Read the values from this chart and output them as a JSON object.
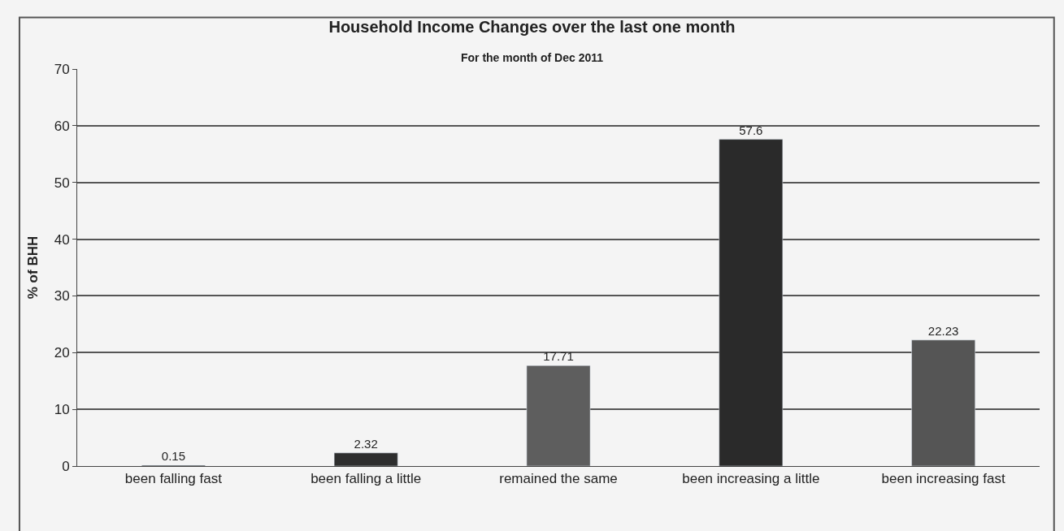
{
  "chart_data": {
    "type": "bar",
    "title": "Household Income Changes over the last one month",
    "subtitle": "For the month of Dec 2011",
    "ylabel": "% of BHH",
    "categories": [
      "been falling fast",
      "been falling a little",
      "remained the same",
      "been increasing a little",
      "been increasing fast"
    ],
    "values": [
      0.15,
      2.32,
      17.71,
      57.6,
      22.23
    ],
    "colors": [
      "#3a3a3a",
      "#2e2e2e",
      "#5e5e5e",
      "#2a2a2a",
      "#555555"
    ],
    "ylim": [
      0,
      70
    ],
    "yticks": [
      0,
      10,
      20,
      30,
      40,
      50,
      60,
      70
    ],
    "grid": "y",
    "data_labels": true,
    "legend": false
  }
}
